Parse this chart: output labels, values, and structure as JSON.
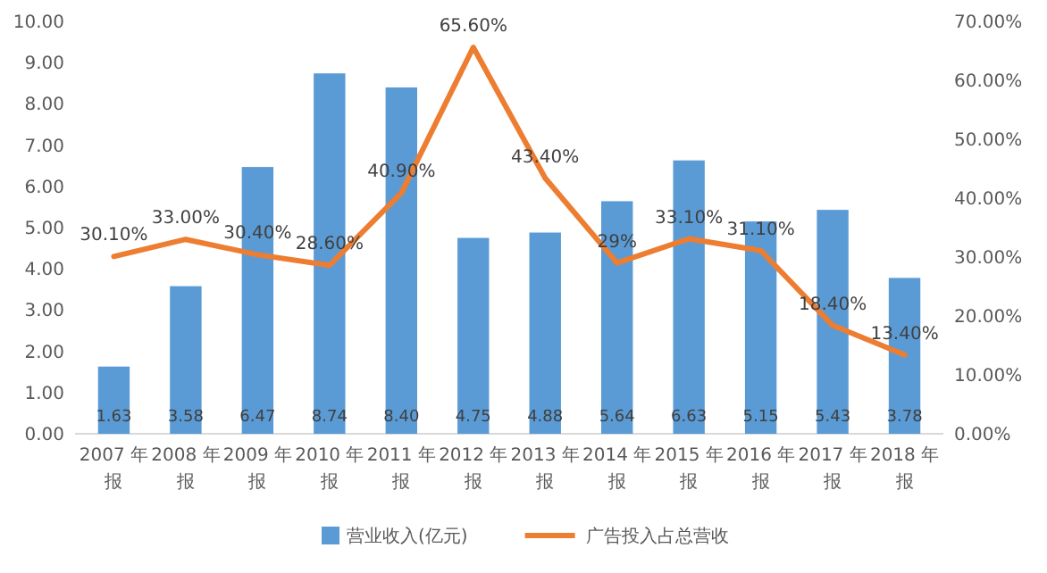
{
  "chart_data": {
    "type": "bar",
    "categories": [
      "2007 年报",
      "2008 年报",
      "2009 年报",
      "2010 年报",
      "2011 年报",
      "2012 年报",
      "2013 年报",
      "2014 年报",
      "2015 年报",
      "2016 年报",
      "2017 年报",
      "2018 年报"
    ],
    "series": [
      {
        "name": "营业收入(亿元)",
        "color": "#5b9bd5",
        "values": [
          1.63,
          3.58,
          6.47,
          8.74,
          8.4,
          4.75,
          4.88,
          5.64,
          6.63,
          5.15,
          5.43,
          3.78
        ],
        "value_labels": [
          "1.63",
          "3.58",
          "6.47",
          "8.74",
          "8.40",
          "4.75",
          "4.88",
          "5.64",
          "6.63",
          "5.15",
          "5.43",
          "3.78"
        ]
      },
      {
        "name": "广告投入占总营收",
        "type": "line",
        "axis": "y2",
        "color": "#ed7d31",
        "values": [
          30.1,
          33.0,
          30.4,
          28.6,
          40.9,
          65.6,
          43.4,
          29,
          33.1,
          31.1,
          18.4,
          13.4
        ],
        "value_labels": [
          "30.10%",
          "33.00%",
          "30.40%",
          "28.60%",
          "40.90%",
          "65.60%",
          "43.40%",
          "29%",
          "33.10%",
          "31.10%",
          "18.40%",
          "13.40%"
        ]
      }
    ],
    "ylim": [
      0,
      10
    ],
    "yticks": [
      {
        "value": 0,
        "label": "0.00"
      },
      {
        "value": 1,
        "label": "1.00"
      },
      {
        "value": 2,
        "label": "2.00"
      },
      {
        "value": 3,
        "label": "3.00"
      },
      {
        "value": 4,
        "label": "4.00"
      },
      {
        "value": 5,
        "label": "5.00"
      },
      {
        "value": 6,
        "label": "6.00"
      },
      {
        "value": 7,
        "label": "7.00"
      },
      {
        "value": 8,
        "label": "8.00"
      },
      {
        "value": 9,
        "label": "9.00"
      },
      {
        "value": 10,
        "label": "10.00"
      }
    ],
    "y2lim": [
      0,
      70
    ],
    "y2ticks": [
      {
        "value": 0,
        "label": "0.00%"
      },
      {
        "value": 10,
        "label": "10.00%"
      },
      {
        "value": 20,
        "label": "20.00%"
      },
      {
        "value": 30,
        "label": "30.00%"
      },
      {
        "value": 40,
        "label": "40.00%"
      },
      {
        "value": 50,
        "label": "50.00%"
      },
      {
        "value": 60,
        "label": "60.00%"
      },
      {
        "value": 70,
        "label": "70.00%"
      }
    ],
    "legend": "bottom",
    "marker": "none",
    "line_style": "solid"
  }
}
